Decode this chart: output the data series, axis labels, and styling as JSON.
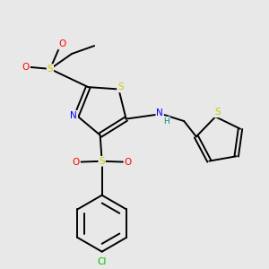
{
  "background_color": "#e8e8e8",
  "bond_color": "#000000",
  "atom_colors": {
    "S": "#cccc00",
    "N": "#0000ff",
    "O": "#ff0000",
    "Cl": "#00bb00",
    "H": "#008888",
    "C": "#000000"
  }
}
